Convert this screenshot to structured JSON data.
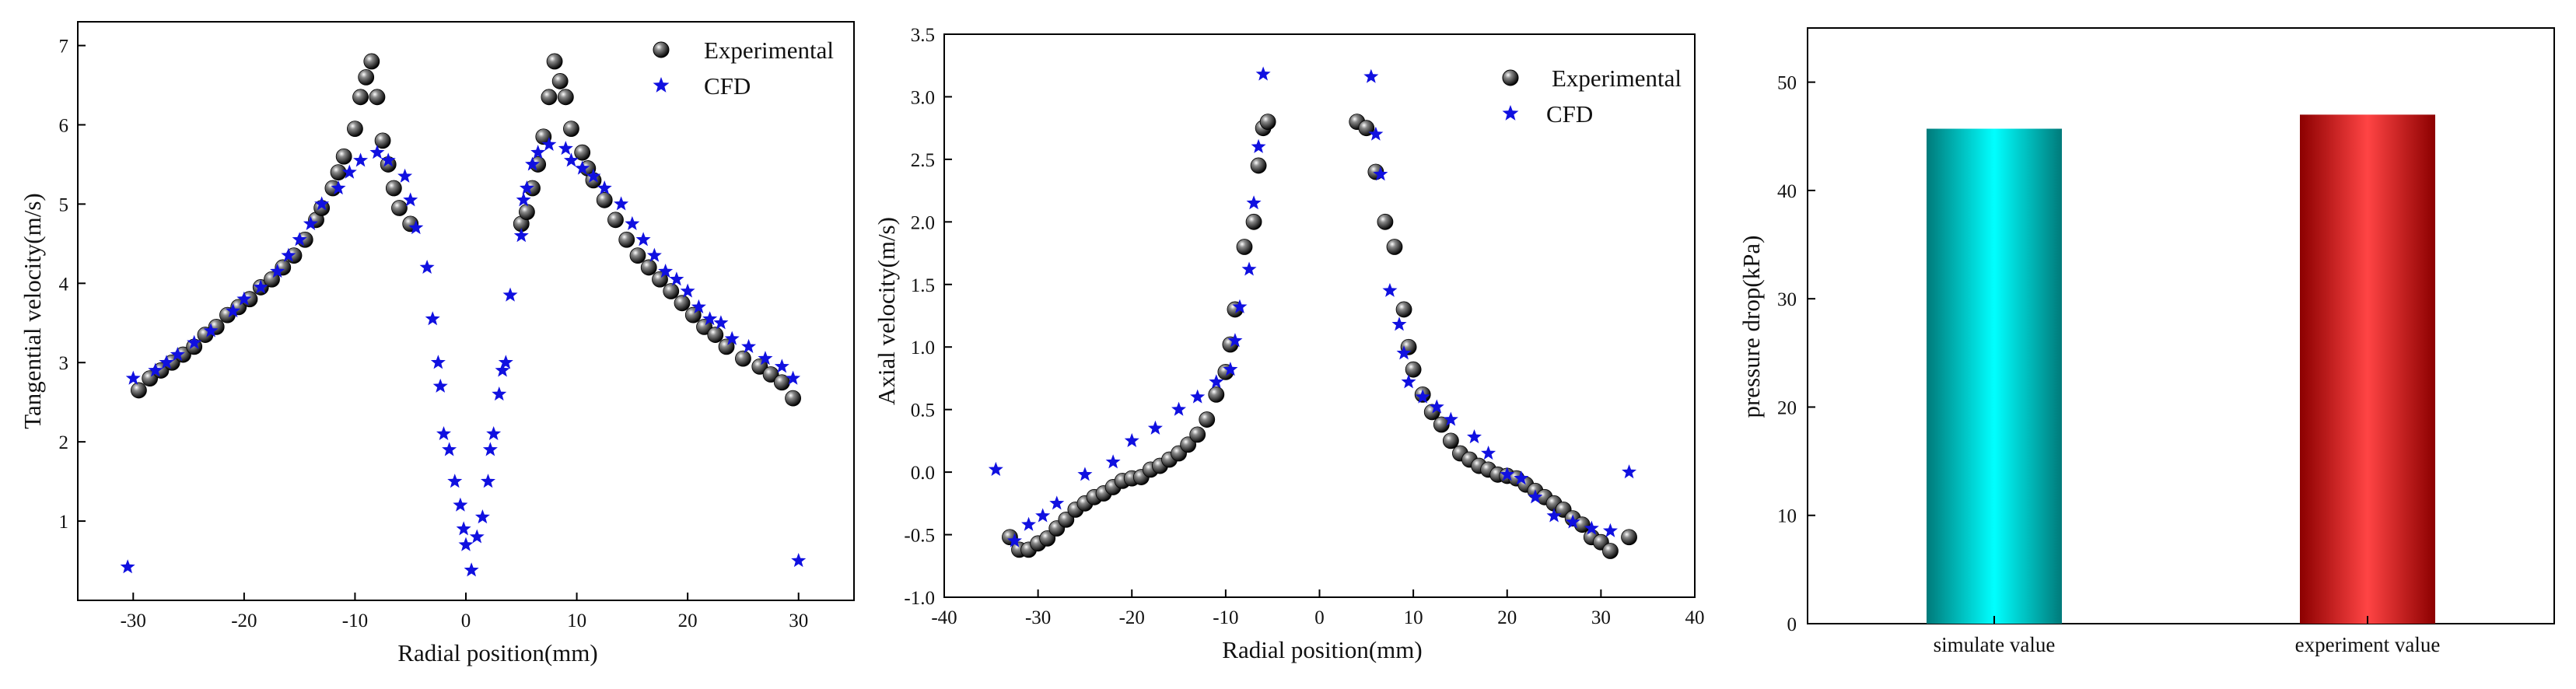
{
  "colors": {
    "experimental": "#222222",
    "cfd": "#1010e0",
    "bar_simulate": "#00e8e8",
    "bar_experiment": "#e02020"
  },
  "chart_data": [
    {
      "type": "scatter",
      "title": "",
      "xlabel": "Radial position(mm)",
      "ylabel": "Tangential velocity(m/s)",
      "xlim": [
        -35,
        35
      ],
      "ylim": [
        0,
        7.3
      ],
      "xticks": [
        -30,
        -20,
        -10,
        0,
        10,
        20,
        30
      ],
      "yticks": [
        1,
        2,
        3,
        4,
        5,
        6,
        7
      ],
      "legend_position": "top-right",
      "series": [
        {
          "name": "Experimental",
          "marker": "sphere",
          "points": [
            [
              -29.5,
              2.65
            ],
            [
              -28.5,
              2.8
            ],
            [
              -27.5,
              2.9
            ],
            [
              -26.5,
              3.0
            ],
            [
              -25.5,
              3.1
            ],
            [
              -24.5,
              3.2
            ],
            [
              -23.5,
              3.35
            ],
            [
              -22.5,
              3.45
            ],
            [
              -21.5,
              3.6
            ],
            [
              -20.5,
              3.7
            ],
            [
              -19.5,
              3.8
            ],
            [
              -18.5,
              3.95
            ],
            [
              -17.5,
              4.05
            ],
            [
              -16.5,
              4.2
            ],
            [
              -15.5,
              4.35
            ],
            [
              -14.5,
              4.55
            ],
            [
              -13.5,
              4.8
            ],
            [
              -13,
              4.95
            ],
            [
              -12,
              5.2
            ],
            [
              -11.5,
              5.4
            ],
            [
              -11,
              5.6
            ],
            [
              -10,
              5.95
            ],
            [
              -9.5,
              6.35
            ],
            [
              -9,
              6.6
            ],
            [
              -8.5,
              6.8
            ],
            [
              -8,
              6.35
            ],
            [
              -7.5,
              5.8
            ],
            [
              -7,
              5.5
            ],
            [
              -6.5,
              5.2
            ],
            [
              -6,
              4.95
            ],
            [
              -5,
              4.75
            ],
            [
              5,
              4.75
            ],
            [
              5.5,
              4.9
            ],
            [
              6,
              5.2
            ],
            [
              6.5,
              5.5
            ],
            [
              7,
              5.85
            ],
            [
              7.5,
              6.35
            ],
            [
              8,
              6.8
            ],
            [
              8.5,
              6.55
            ],
            [
              9,
              6.35
            ],
            [
              9.5,
              5.95
            ],
            [
              10.5,
              5.65
            ],
            [
              11,
              5.45
            ],
            [
              11.5,
              5.3
            ],
            [
              12.5,
              5.05
            ],
            [
              13.5,
              4.8
            ],
            [
              14.5,
              4.55
            ],
            [
              15.5,
              4.35
            ],
            [
              16.5,
              4.2
            ],
            [
              17.5,
              4.05
            ],
            [
              18.5,
              3.9
            ],
            [
              19.5,
              3.75
            ],
            [
              20.5,
              3.6
            ],
            [
              21.5,
              3.45
            ],
            [
              22.5,
              3.35
            ],
            [
              23.5,
              3.2
            ],
            [
              25,
              3.05
            ],
            [
              26.5,
              2.95
            ],
            [
              27.5,
              2.85
            ],
            [
              28.5,
              2.75
            ],
            [
              29.5,
              2.55
            ]
          ]
        },
        {
          "name": "CFD",
          "marker": "star",
          "points": [
            [
              -30.5,
              0.42
            ],
            [
              -30,
              2.8
            ],
            [
              -28,
              2.9
            ],
            [
              -27,
              3.0
            ],
            [
              -26,
              3.1
            ],
            [
              -24.5,
              3.25
            ],
            [
              -23,
              3.4
            ],
            [
              -21,
              3.65
            ],
            [
              -20,
              3.8
            ],
            [
              -18.5,
              3.95
            ],
            [
              -17,
              4.15
            ],
            [
              -16,
              4.35
            ],
            [
              -15,
              4.55
            ],
            [
              -14,
              4.75
            ],
            [
              -13,
              5.0
            ],
            [
              -11.5,
              5.2
            ],
            [
              -10.5,
              5.4
            ],
            [
              -9.5,
              5.55
            ],
            [
              -8,
              5.65
            ],
            [
              -7,
              5.55
            ],
            [
              -5.5,
              5.35
            ],
            [
              -5,
              5.05
            ],
            [
              -4.5,
              4.7
            ],
            [
              -3.5,
              4.2
            ],
            [
              -3,
              3.55
            ],
            [
              -2.5,
              3.0
            ],
            [
              -2.3,
              2.7
            ],
            [
              -2,
              2.1
            ],
            [
              -1.5,
              1.9
            ],
            [
              -1,
              1.5
            ],
            [
              -0.5,
              1.2
            ],
            [
              -0.2,
              0.9
            ],
            [
              0,
              0.7
            ],
            [
              0.5,
              0.38
            ],
            [
              1,
              0.8
            ],
            [
              1.5,
              1.05
            ],
            [
              2,
              1.5
            ],
            [
              2.2,
              1.9
            ],
            [
              2.5,
              2.1
            ],
            [
              3,
              2.6
            ],
            [
              3.3,
              2.9
            ],
            [
              3.6,
              3.0
            ],
            [
              4,
              3.85
            ],
            [
              5,
              4.6
            ],
            [
              5.2,
              5.05
            ],
            [
              5.5,
              5.2
            ],
            [
              6,
              5.5
            ],
            [
              6.5,
              5.65
            ],
            [
              7.5,
              5.75
            ],
            [
              9,
              5.7
            ],
            [
              9.5,
              5.55
            ],
            [
              10.5,
              5.45
            ],
            [
              11.5,
              5.35
            ],
            [
              12.5,
              5.2
            ],
            [
              14,
              5.0
            ],
            [
              15,
              4.75
            ],
            [
              16,
              4.55
            ],
            [
              17,
              4.35
            ],
            [
              18,
              4.15
            ],
            [
              19,
              4.05
            ],
            [
              20,
              3.9
            ],
            [
              21,
              3.7
            ],
            [
              22,
              3.55
            ],
            [
              23,
              3.5
            ],
            [
              24,
              3.3
            ],
            [
              25.5,
              3.2
            ],
            [
              27,
              3.05
            ],
            [
              28.5,
              2.95
            ],
            [
              29.5,
              2.8
            ],
            [
              30,
              0.5
            ]
          ]
        }
      ]
    },
    {
      "type": "scatter",
      "title": "",
      "xlabel": "Radial position(mm)",
      "ylabel": "Axial velocity(m/s)",
      "xlim": [
        -40,
        40
      ],
      "ylim": [
        -1.0,
        3.5
      ],
      "xticks": [
        -40,
        -30,
        -20,
        -10,
        0,
        10,
        20,
        30,
        40
      ],
      "yticks": [
        -1.0,
        -0.5,
        0.0,
        0.5,
        1.0,
        1.5,
        2.0,
        2.5,
        3.0,
        3.5
      ],
      "legend_position": "top-right",
      "series": [
        {
          "name": "Experimental",
          "marker": "sphere",
          "points": [
            [
              -33,
              -0.52
            ],
            [
              -32,
              -0.62
            ],
            [
              -31,
              -0.62
            ],
            [
              -30,
              -0.57
            ],
            [
              -29,
              -0.53
            ],
            [
              -28,
              -0.45
            ],
            [
              -27,
              -0.38
            ],
            [
              -26,
              -0.3
            ],
            [
              -25,
              -0.25
            ],
            [
              -24,
              -0.2
            ],
            [
              -23,
              -0.17
            ],
            [
              -22,
              -0.12
            ],
            [
              -21,
              -0.07
            ],
            [
              -20,
              -0.05
            ],
            [
              -19,
              -0.04
            ],
            [
              -18,
              0.02
            ],
            [
              -17,
              0.05
            ],
            [
              -16,
              0.1
            ],
            [
              -15,
              0.15
            ],
            [
              -14,
              0.22
            ],
            [
              -13,
              0.3
            ],
            [
              -12,
              0.42
            ],
            [
              -11,
              0.62
            ],
            [
              -10,
              0.8
            ],
            [
              -9.5,
              1.02
            ],
            [
              -9,
              1.3
            ],
            [
              -8,
              1.8
            ],
            [
              -7,
              2.0
            ],
            [
              -6.5,
              2.45
            ],
            [
              -6,
              2.75
            ],
            [
              -5.5,
              2.8
            ],
            [
              4,
              2.8
            ],
            [
              5,
              2.75
            ],
            [
              6,
              2.4
            ],
            [
              7,
              2.0
            ],
            [
              8,
              1.8
            ],
            [
              9,
              1.3
            ],
            [
              9.5,
              1.0
            ],
            [
              10,
              0.82
            ],
            [
              11,
              0.62
            ],
            [
              12,
              0.48
            ],
            [
              13,
              0.38
            ],
            [
              14,
              0.25
            ],
            [
              15,
              0.15
            ],
            [
              16,
              0.1
            ],
            [
              17,
              0.05
            ],
            [
              18,
              0.02
            ],
            [
              19,
              -0.02
            ],
            [
              20,
              -0.03
            ],
            [
              21,
              -0.05
            ],
            [
              22,
              -0.1
            ],
            [
              23,
              -0.15
            ],
            [
              24,
              -0.2
            ],
            [
              25,
              -0.25
            ],
            [
              26,
              -0.3
            ],
            [
              27,
              -0.37
            ],
            [
              28,
              -0.42
            ],
            [
              29,
              -0.52
            ],
            [
              30,
              -0.56
            ],
            [
              31,
              -0.63
            ],
            [
              33,
              -0.52
            ]
          ]
        },
        {
          "name": "CFD",
          "marker": "star",
          "points": [
            [
              -34.5,
              0.02
            ],
            [
              -32.5,
              -0.55
            ],
            [
              -31,
              -0.42
            ],
            [
              -29.5,
              -0.35
            ],
            [
              -28,
              -0.25
            ],
            [
              -25,
              -0.02
            ],
            [
              -22,
              0.08
            ],
            [
              -20,
              0.25
            ],
            [
              -17.5,
              0.35
            ],
            [
              -15,
              0.5
            ],
            [
              -13,
              0.6
            ],
            [
              -11,
              0.72
            ],
            [
              -9.5,
              0.82
            ],
            [
              -9,
              1.05
            ],
            [
              -8.5,
              1.32
            ],
            [
              -7.5,
              1.62
            ],
            [
              -7,
              2.15
            ],
            [
              -6.5,
              2.6
            ],
            [
              -6,
              3.18
            ],
            [
              5.5,
              3.16
            ],
            [
              6,
              2.7
            ],
            [
              6.5,
              2.38
            ],
            [
              7.5,
              1.45
            ],
            [
              8.5,
              1.18
            ],
            [
              9,
              0.95
            ],
            [
              9.5,
              0.72
            ],
            [
              11,
              0.6
            ],
            [
              12.5,
              0.52
            ],
            [
              14,
              0.42
            ],
            [
              16.5,
              0.28
            ],
            [
              18,
              0.15
            ],
            [
              20,
              -0.02
            ],
            [
              21.5,
              -0.05
            ],
            [
              23,
              -0.2
            ],
            [
              25,
              -0.35
            ],
            [
              27,
              -0.4
            ],
            [
              29,
              -0.45
            ],
            [
              31,
              -0.47
            ],
            [
              33,
              0.0
            ]
          ]
        }
      ]
    },
    {
      "type": "bar",
      "title": "",
      "xlabel": "",
      "ylabel": "pressure drop(kPa)",
      "categories": [
        "simulate value",
        "experiment value"
      ],
      "values": [
        45.7,
        47.0
      ],
      "ylim": [
        0,
        55
      ],
      "yticks": [
        0,
        10,
        20,
        30,
        40,
        50
      ]
    }
  ]
}
